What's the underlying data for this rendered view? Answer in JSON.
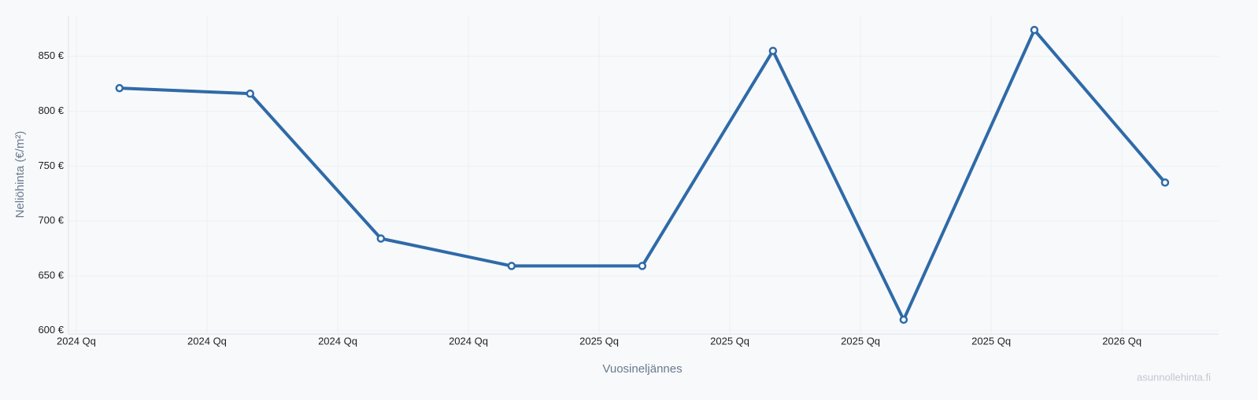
{
  "chart_data": {
    "type": "line",
    "x_label": "Vuosineljännes",
    "y_label": "Neliöhinta (€/m²)",
    "watermark": "asunnollehinta.fi",
    "x": [
      0.33,
      1.33,
      2.33,
      3.33,
      4.33,
      5.33,
      6.33,
      7.33,
      8.33
    ],
    "series": [
      {
        "name": "Neliöhinta",
        "color": "#2f6aa8",
        "values": [
          821,
          816,
          684,
          659,
          659,
          855,
          610,
          874,
          735
        ]
      }
    ],
    "xlim": [
      -0.06,
      8.74
    ],
    "xticks": [
      {
        "value": 0,
        "label": "2024 Qq"
      },
      {
        "value": 1,
        "label": "2024 Qq"
      },
      {
        "value": 2,
        "label": "2024 Qq"
      },
      {
        "value": 3,
        "label": "2024 Qq"
      },
      {
        "value": 4,
        "label": "2025 Qq"
      },
      {
        "value": 5,
        "label": "2025 Qq"
      },
      {
        "value": 6,
        "label": "2025 Qq"
      },
      {
        "value": 7,
        "label": "2025 Qq"
      },
      {
        "value": 8,
        "label": "2026 Qq"
      }
    ],
    "ylim": [
      597,
      887
    ],
    "yticks": [
      {
        "value": 600,
        "label": "600 €"
      },
      {
        "value": 650,
        "label": "650 €"
      },
      {
        "value": 700,
        "label": "700 €"
      },
      {
        "value": 750,
        "label": "750 €"
      },
      {
        "value": 800,
        "label": "800 €"
      },
      {
        "value": 850,
        "label": "850 €"
      }
    ],
    "grid": true
  }
}
